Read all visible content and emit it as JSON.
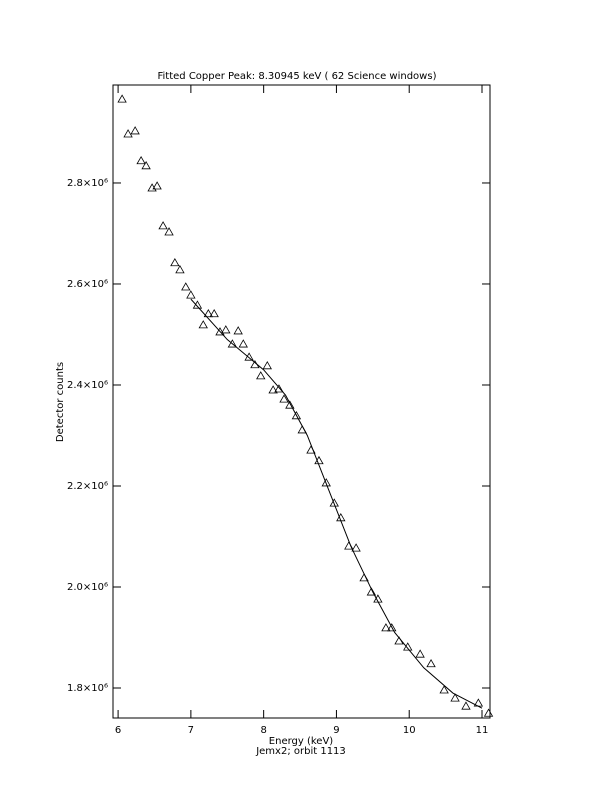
{
  "chart_data": {
    "type": "scatter",
    "title": "Fitted Copper Peak:      8.30945 keV (      62 Science windows)",
    "x_label": "Energy (keV)",
    "subtitle": "Jemx2; orbit 1113",
    "y_label": "Detector counts",
    "color": "#000000",
    "x": [
      6.055,
      6.137,
      6.234,
      6.316,
      6.385,
      6.467,
      6.536,
      6.618,
      6.7,
      6.78,
      6.85,
      6.93,
      7.0,
      7.09,
      7.17,
      7.24,
      7.32,
      7.4,
      7.48,
      7.57,
      7.65,
      7.72,
      7.8,
      7.88,
      7.96,
      8.05,
      8.13,
      8.21,
      8.28,
      8.36,
      8.45,
      8.53,
      8.65,
      8.76,
      8.86,
      8.97,
      9.06,
      9.17,
      9.27,
      9.38,
      9.48,
      9.57,
      9.68,
      9.76,
      9.86,
      9.98,
      10.15,
      10.3,
      10.48,
      10.63,
      10.78,
      10.95,
      11.09
    ],
    "values": [
      2966000,
      2897000,
      2903000,
      2844000,
      2834000,
      2790000,
      2794000,
      2715000,
      2703000,
      2642000,
      2628000,
      2594000,
      2578000,
      2558000,
      2519000,
      2541000,
      2541000,
      2505000,
      2509000,
      2481000,
      2507000,
      2481000,
      2455000,
      2440000,
      2418000,
      2438000,
      2390000,
      2392000,
      2372000,
      2360000,
      2339000,
      2311000,
      2271000,
      2250000,
      2206000,
      2166000,
      2137000,
      2081000,
      2077000,
      2018000,
      1990000,
      1976000,
      1919000,
      1919000,
      1893000,
      1881000,
      1867000,
      1848000,
      1796000,
      1780000,
      1764000,
      1770000,
      1750000
    ],
    "fit": {
      "x": [
        7.0,
        7.5,
        8.0,
        8.3,
        8.6,
        8.9,
        9.2,
        9.5,
        9.8,
        10.2,
        10.6,
        11.0
      ],
      "values": [
        2570000,
        2490000,
        2430000,
        2380000,
        2300000,
        2190000,
        2080000,
        1990000,
        1910000,
        1840000,
        1790000,
        1760000
      ]
    },
    "xlim": [
      5.93,
      11.11
    ],
    "ylim": [
      1740600,
      2994000
    ],
    "xticks": [
      6,
      7,
      8,
      9,
      10,
      11
    ],
    "yticks": [
      {
        "value": 1800000,
        "label": "1.8×10⁶"
      },
      {
        "value": 2000000,
        "label": "2.0×10⁶"
      },
      {
        "value": 2200000,
        "label": "2.2×10⁶"
      },
      {
        "value": 2400000,
        "label": "2.4×10⁶"
      },
      {
        "value": 2600000,
        "label": "2.6×10⁶"
      },
      {
        "value": 2800000,
        "label": "2.8×10⁶"
      }
    ]
  }
}
